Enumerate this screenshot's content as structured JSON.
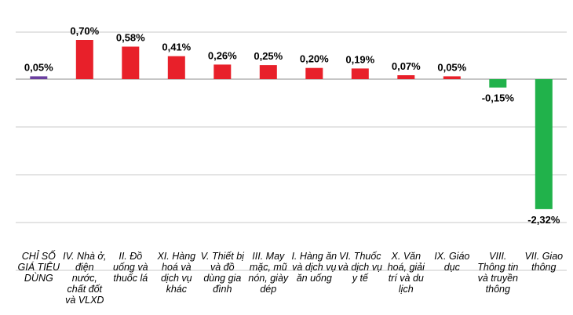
{
  "chart_data": {
    "type": "bar",
    "title": "",
    "xlabel": "",
    "ylabel": "",
    "ylim": [
      -2.5,
      0.9
    ],
    "grid": true,
    "legend": "none",
    "categories": [
      "CHỈ SỐ GIÁ TIÊU DÙNG",
      "IV. Nhà ở, điện nước, chất đốt và VLXD",
      "II. Đồ uống và thuốc lá",
      "XI. Hàng hoá và dịch vụ khác",
      "V. Thiết bị và đồ dùng gia đình",
      "III. May mặc, mũ nón, giày dép",
      "I. Hàng ăn và dịch vụ ăn uống",
      "VI. Thuốc và dịch vụ y tế",
      "X. Văn hoá, giải trí và du lịch",
      "IX. Giáo dục",
      "VIII. Thông tin và truyền thông",
      "VII. Giao thông"
    ],
    "values": [
      0.05,
      0.7,
      0.58,
      0.41,
      0.26,
      0.25,
      0.2,
      0.19,
      0.07,
      0.05,
      -0.15,
      -2.32
    ],
    "labels": [
      "0,05%",
      "0,70%",
      "0,58%",
      "0,41%",
      "0,26%",
      "0,25%",
      "0,20%",
      "0,19%",
      "0,07%",
      "0,05%",
      "-0,15%",
      "-2,32%"
    ],
    "colors": {
      "index": "#6b3fa0",
      "increase": "#e8202a",
      "decrease": "#21b24b"
    }
  }
}
